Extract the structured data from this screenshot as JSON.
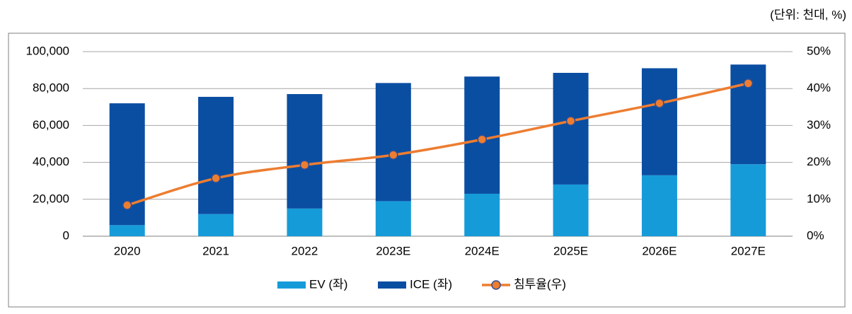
{
  "chart_data": {
    "type": "bar_line",
    "annotation": "(단위: 천대, %)",
    "categories": [
      "2020",
      "2021",
      "2022",
      "2023E",
      "2024E",
      "2025E",
      "2026E",
      "2027E"
    ],
    "series": [
      {
        "name": "EV (좌)",
        "type": "bar",
        "color": "#169bd9",
        "values": [
          6000,
          12000,
          15000,
          19000,
          23000,
          28000,
          33000,
          39000
        ]
      },
      {
        "name": "ICE (좌)",
        "type": "bar",
        "color": "#0a4ea2",
        "values": [
          66000,
          63500,
          62000,
          64000,
          63500,
          60500,
          58000,
          54000
        ]
      },
      {
        "name": "침투율(우)",
        "type": "line",
        "axis": "y2",
        "color": "#ed7d31",
        "marker_edge_color": "#2f4f96",
        "values": [
          8.4,
          15.7,
          19.3,
          22,
          26.2,
          31.2,
          36,
          41.4
        ]
      }
    ],
    "stacked": true,
    "ylim": [
      0,
      100000
    ],
    "yticks": [
      0,
      {
        "value": 20000,
        "label": "20,000"
      },
      {
        "value": 40000,
        "label": "40,000"
      },
      {
        "value": 60000,
        "label": "60,000"
      },
      {
        "value": 80000,
        "label": "80,000"
      },
      {
        "value": 100000,
        "label": "100,000"
      }
    ],
    "y2lim": [
      0,
      50
    ],
    "y2ticks": [
      {
        "value": 0,
        "label": "0%"
      },
      {
        "value": 10,
        "label": "10%"
      },
      {
        "value": 20,
        "label": "20%"
      },
      {
        "value": 30,
        "label": "30%"
      },
      {
        "value": 40,
        "label": "40%"
      },
      {
        "value": 50,
        "label": "50%"
      }
    ],
    "grid": true,
    "legend": "bottom"
  }
}
